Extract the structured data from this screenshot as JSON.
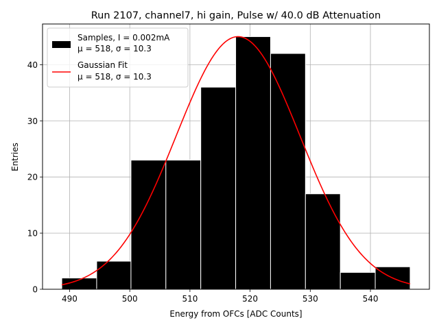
{
  "chart_data": {
    "type": "bar",
    "title": "Run 2107, channel7, hi gain, Pulse w/ 40.0 dB Attenuation",
    "xlabel": "Energy from OFCs [ADC Counts]",
    "ylabel": "Entries",
    "xlim": [
      485.5,
      549.8
    ],
    "ylim": [
      0,
      47.25
    ],
    "grid": true,
    "x_ticks": [
      490,
      500,
      510,
      520,
      530,
      540
    ],
    "y_ticks": [
      0,
      10,
      20,
      30,
      40
    ],
    "bin_edges": [
      488.7,
      494.5,
      500.2,
      506.0,
      511.8,
      517.6,
      523.4,
      529.2,
      535.0,
      540.8,
      546.6
    ],
    "values": [
      2,
      5,
      23,
      23,
      36,
      45,
      42,
      17,
      3,
      4
    ],
    "fit": {
      "type": "gaussian",
      "mu": 518,
      "sigma": 10.3,
      "amplitude": 45,
      "x_range": [
        488.7,
        546.6
      ],
      "color": "#ff0000"
    },
    "bar_color": "#000000",
    "legend": {
      "placement": "top-left",
      "entries": [
        {
          "line1": "Samples, I = 0.002mA",
          "line2": "μ = 518, σ = 10.3",
          "kind": "patch",
          "color": "#000000"
        },
        {
          "line1": "Gaussian Fit",
          "line2": "μ = 518, σ = 10.3",
          "kind": "line",
          "color": "#ff0000"
        }
      ]
    }
  }
}
